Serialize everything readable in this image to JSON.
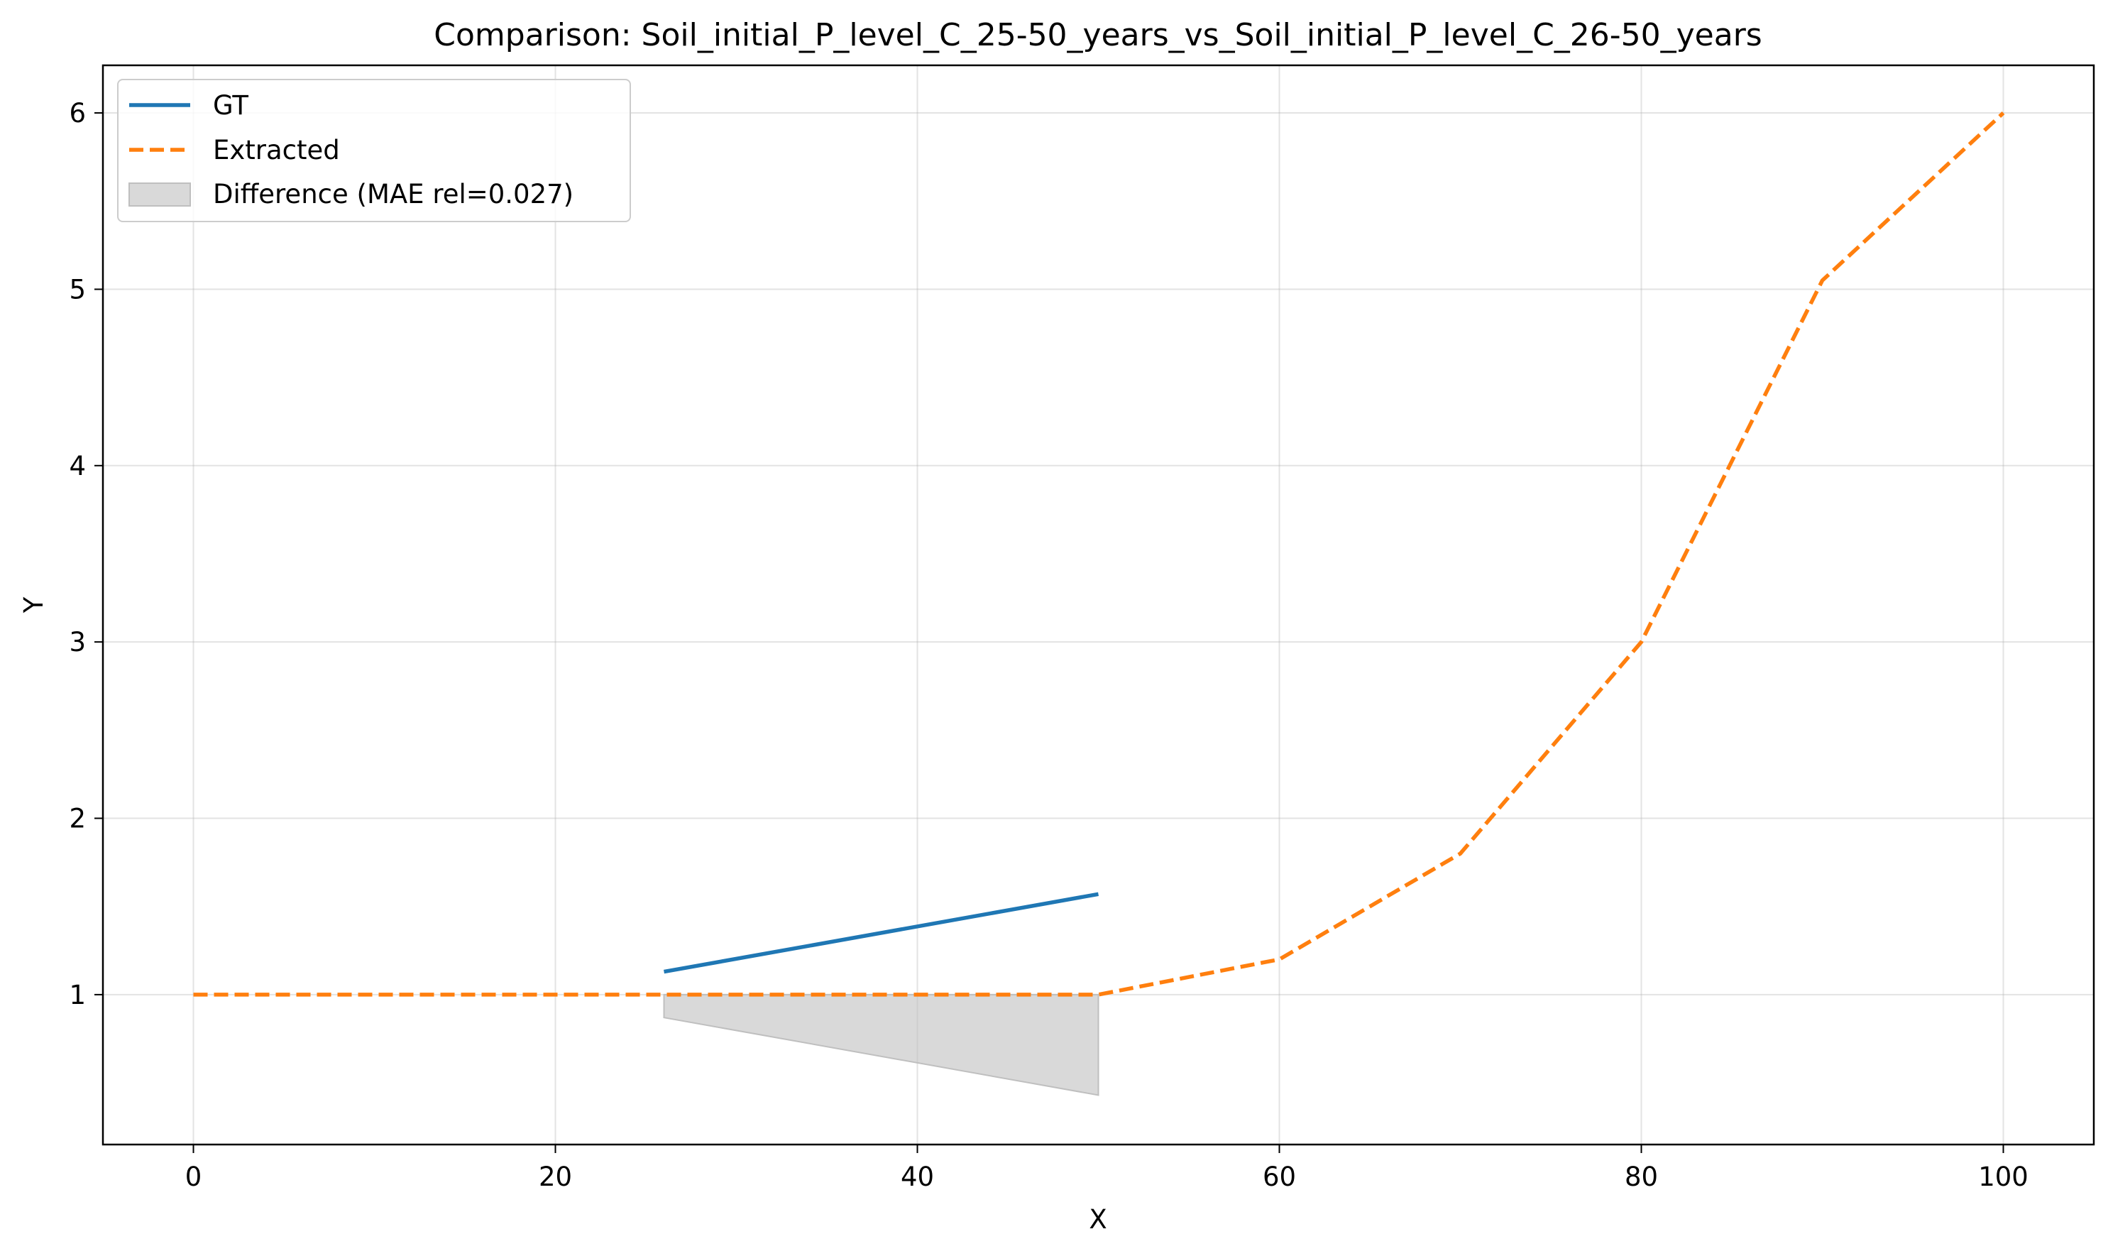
{
  "chart_data": {
    "type": "line",
    "title": "Comparison: Soil_initial_P_level_C_25-50_years_vs_Soil_initial_P_level_C_26-50_years",
    "xlabel": "X",
    "ylabel": "Y",
    "xlim": [
      -5,
      105
    ],
    "ylim": [
      0.15,
      6.27
    ],
    "grid": true,
    "legend_position": "top-left",
    "x_ticks": [
      0,
      20,
      40,
      60,
      80,
      100
    ],
    "y_ticks": [
      1,
      2,
      3,
      4,
      5,
      6
    ],
    "series": [
      {
        "name": "GT",
        "style": "solid",
        "color": "#1f77b4",
        "x": [
          26,
          50
        ],
        "y": [
          1.13,
          1.57
        ]
      },
      {
        "name": "Extracted",
        "style": "dashed",
        "color": "#ff7f0e",
        "x": [
          0,
          10,
          20,
          30,
          40,
          50,
          60,
          70,
          80,
          90,
          100
        ],
        "y": [
          1.0,
          1.0,
          1.0,
          1.0,
          1.0,
          1.0,
          1.2,
          1.8,
          3.0,
          5.05,
          6.0
        ]
      }
    ],
    "difference_area": {
      "name": "Difference (MAE rel=0.027)",
      "color": "#bfbfbf",
      "x": [
        26,
        50
      ],
      "upper": [
        1.0,
        1.0
      ],
      "lower": [
        0.87,
        0.43
      ]
    }
  }
}
